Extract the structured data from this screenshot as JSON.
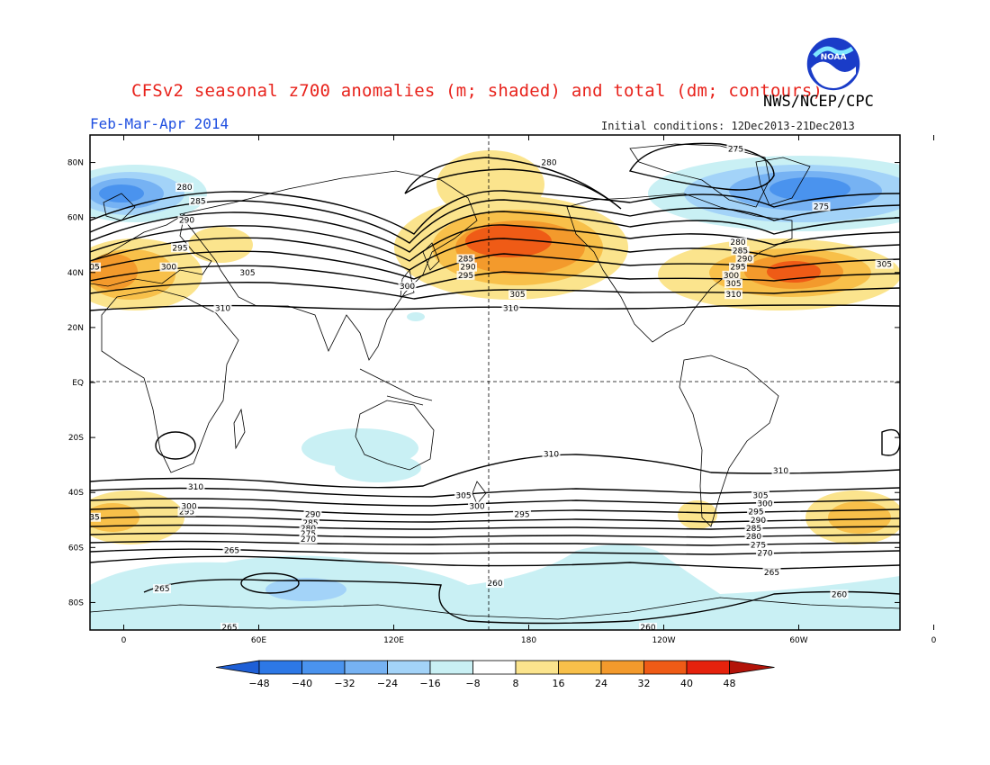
{
  "header": {
    "title": "CFSv2 seasonal z700 anomalies (m; shaded) and total (dm; contours)",
    "agency": "NWS/NCEP/CPC",
    "period": "Feb-Mar-Apr 2014",
    "initial_conditions": "Initial conditions: 12Dec2013-21Dec2013",
    "logo_text": "NOAA"
  },
  "axes": {
    "lat_labels": [
      "80N",
      "60N",
      "40N",
      "20N",
      "EQ",
      "20S",
      "40S",
      "60S",
      "80S"
    ],
    "lon_labels": [
      "0",
      "60E",
      "120E",
      "180",
      "120W",
      "60W",
      "0"
    ]
  },
  "colorbar": {
    "labels": [
      "-48",
      "-40",
      "-32",
      "-24",
      "-16",
      "-8",
      "8",
      "16",
      "24",
      "32",
      "40",
      "48"
    ],
    "colors": [
      "#1e5fd6",
      "#2d78e6",
      "#4a93ee",
      "#76b2f3",
      "#a3d3f8",
      "#c9f0f4",
      "#ffffff",
      "#fbe48d",
      "#f8c04a",
      "#f39a2c",
      "#ef5b16",
      "#e5220d",
      "#b31309"
    ]
  },
  "contour_labels": [
    {
      "text": "280",
      "lon": 189,
      "lat": 80
    },
    {
      "text": "275",
      "lon": -88,
      "lat": 85
    },
    {
      "text": "275",
      "lon": -50,
      "lat": 64
    },
    {
      "text": "280",
      "lon": 27,
      "lat": 71
    },
    {
      "text": "285",
      "lon": 33,
      "lat": 66
    },
    {
      "text": "290",
      "lon": 28,
      "lat": 59
    },
    {
      "text": "295",
      "lon": 25,
      "lat": 49
    },
    {
      "text": "300",
      "lon": 20,
      "lat": 42
    },
    {
      "text": "305",
      "lon": 55,
      "lat": 40
    },
    {
      "text": "310",
      "lon": 44,
      "lat": 27
    },
    {
      "text": "305",
      "lon": -22,
      "lat": 43
    },
    {
      "text": "285",
      "lon": 152,
      "lat": 45
    },
    {
      "text": "290",
      "lon": 153,
      "lat": 42
    },
    {
      "text": "295",
      "lon": 152,
      "lat": 39
    },
    {
      "text": "300",
      "lon": 126,
      "lat": 35
    },
    {
      "text": "305",
      "lon": 175,
      "lat": 32
    },
    {
      "text": "310",
      "lon": 172,
      "lat": 27
    },
    {
      "text": "280",
      "lon": -87,
      "lat": 51
    },
    {
      "text": "285",
      "lon": -86,
      "lat": 48
    },
    {
      "text": "290",
      "lon": -84,
      "lat": 45
    },
    {
      "text": "295",
      "lon": -87,
      "lat": 42
    },
    {
      "text": "300",
      "lon": -90,
      "lat": 39
    },
    {
      "text": "305",
      "lon": -89,
      "lat": 36
    },
    {
      "text": "310",
      "lon": -89,
      "lat": 32
    },
    {
      "text": "310",
      "lon": 190,
      "lat": -26
    },
    {
      "text": "310",
      "lon": 32,
      "lat": -38
    },
    {
      "text": "310",
      "lon": -68,
      "lat": -32
    },
    {
      "text": "305",
      "lon": 151,
      "lat": -41
    },
    {
      "text": "300",
      "lon": 157,
      "lat": -45
    },
    {
      "text": "295",
      "lon": 177,
      "lat": -48
    },
    {
      "text": "305",
      "lon": -77,
      "lat": -41
    },
    {
      "text": "300",
      "lon": -75,
      "lat": -44
    },
    {
      "text": "295",
      "lon": -79,
      "lat": -47
    },
    {
      "text": "290",
      "lon": -78,
      "lat": -50
    },
    {
      "text": "285",
      "lon": -80,
      "lat": -53
    },
    {
      "text": "280",
      "lon": -80,
      "lat": -56
    },
    {
      "text": "275",
      "lon": -78,
      "lat": -59
    },
    {
      "text": "270",
      "lon": -75,
      "lat": -62
    },
    {
      "text": "265",
      "lon": -72,
      "lat": -69
    },
    {
      "text": "295",
      "lon": 28,
      "lat": -47
    },
    {
      "text": "300",
      "lon": 29,
      "lat": -45
    },
    {
      "text": "290",
      "lon": 84,
      "lat": -48
    },
    {
      "text": "285",
      "lon": 83,
      "lat": -51
    },
    {
      "text": "280",
      "lon": 82,
      "lat": -53
    },
    {
      "text": "275",
      "lon": 82,
      "lat": -55
    },
    {
      "text": "270",
      "lon": 82,
      "lat": -57
    },
    {
      "text": "265",
      "lon": 48,
      "lat": -61
    },
    {
      "text": "265",
      "lon": 17,
      "lat": -75
    },
    {
      "text": "260",
      "lon": 165,
      "lat": -73
    },
    {
      "text": "260",
      "lon": -127,
      "lat": -89
    },
    {
      "text": "260",
      "lon": -42,
      "lat": -77
    },
    {
      "text": "265",
      "lon": 47,
      "lat": -89
    },
    {
      "text": "35",
      "lon": -13,
      "lat": -49
    },
    {
      "text": "05",
      "lon": -13,
      "lat": 42
    }
  ]
}
